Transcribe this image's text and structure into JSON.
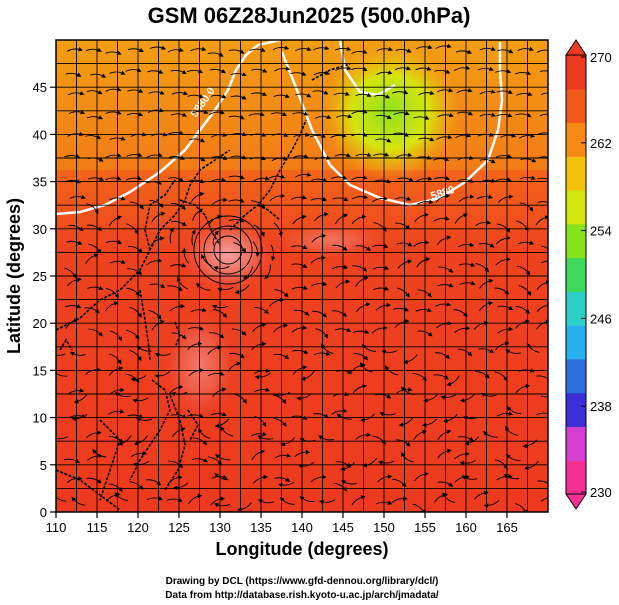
{
  "title": "GSM 06Z28Jun2025 (500.0hPa)",
  "x_axis": {
    "label": "Longitude (degrees)",
    "range": [
      110,
      170
    ],
    "ticks": [
      "110",
      "115",
      "120",
      "125",
      "130",
      "135",
      "140",
      "145",
      "150",
      "155",
      "160",
      "165"
    ]
  },
  "y_axis": {
    "label": "Latitude  (degrees)",
    "range": [
      0,
      50
    ],
    "ticks": [
      "0",
      "5",
      "10",
      "15",
      "20",
      "25",
      "30",
      "35",
      "40",
      "45"
    ]
  },
  "colorbar": {
    "range": [
      230,
      270
    ],
    "ticks": [
      "230",
      "238",
      "246",
      "254",
      "262",
      "270"
    ],
    "palette": [
      "#f72f94",
      "#d43fd1",
      "#3a2fd6",
      "#2c6fe0",
      "#28b0ee",
      "#2cd0c8",
      "#3ed85a",
      "#86e21a",
      "#d2e40c",
      "#f2c20c",
      "#f68a14",
      "#f25a1c",
      "#ee3a20"
    ]
  },
  "contours": [
    {
      "label": "5880.0"
    },
    {
      "label": "5880"
    }
  ],
  "credits": {
    "line1": "Drawing by DCL (https://www.gfd-dennou.org/library/dcl/)",
    "line2": "Data from http://database.rish.kyoto-u.ac.jp/arch/jmadata/"
  }
}
